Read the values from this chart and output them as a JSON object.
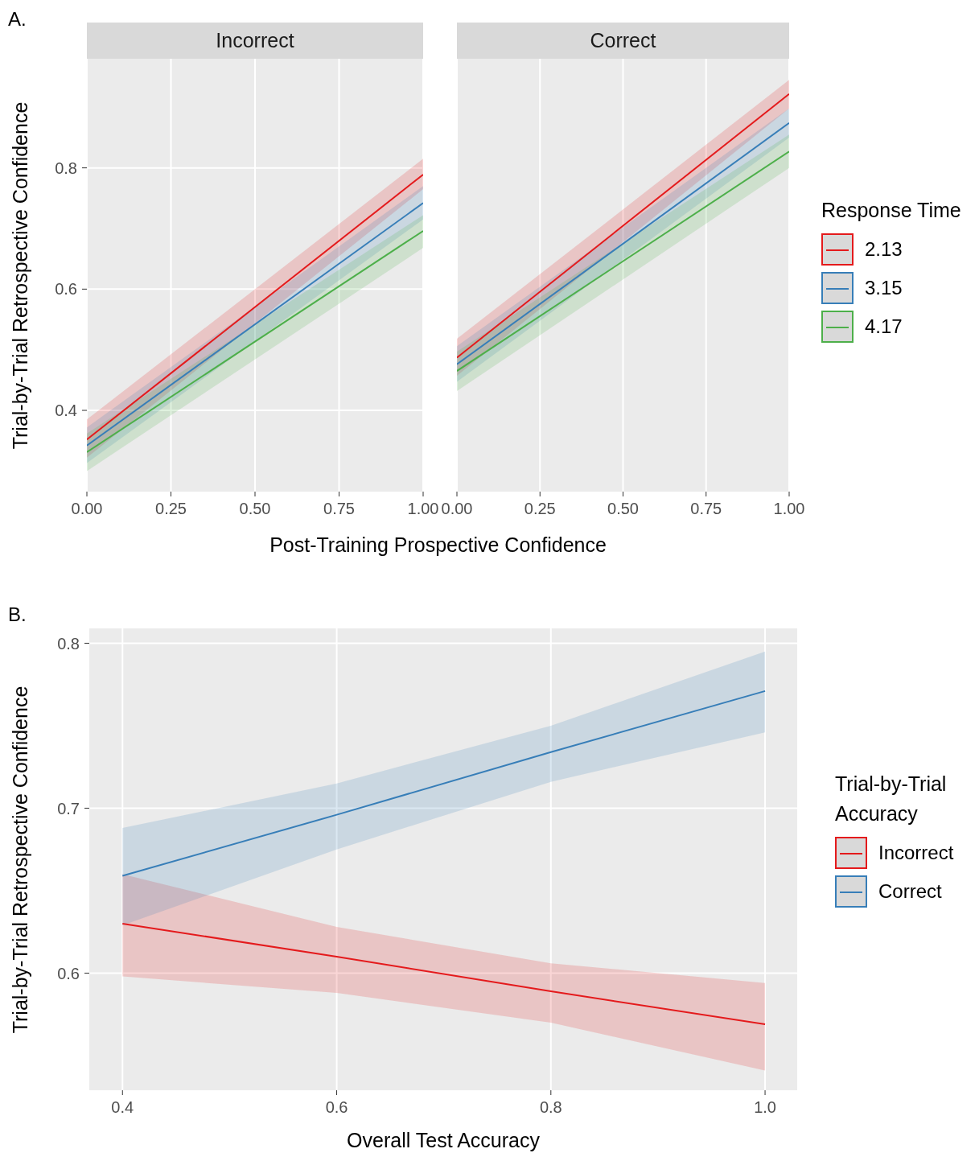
{
  "chart_data": [
    {
      "type": "line",
      "title": "Incorrect",
      "xlabel": "Post-Training Prospective Confidence",
      "ylabel": "Trial-by-Trial Retrospective Confidence",
      "annotations": [
        "A."
      ],
      "x": [
        0,
        1
      ],
      "xlim": [
        0,
        1
      ],
      "xticks": [
        {
          "value": 0,
          "label": "0.00"
        },
        {
          "value": 0.25,
          "label": "0.25"
        },
        {
          "value": 0.5,
          "label": "0.50"
        },
        {
          "value": 0.75,
          "label": "0.75"
        },
        {
          "value": 1,
          "label": "1.00"
        }
      ],
      "ylim": [
        0.266,
        0.98
      ],
      "yticks": [
        0.4,
        0.6,
        0.8
      ],
      "grid": true,
      "series": [
        {
          "color": "#e41a1c",
          "values": [
            0.352,
            0.789
          ],
          "lower": [
            0.322,
            0.765
          ],
          "upper": [
            0.385,
            0.815
          ]
        },
        {
          "color": "#377eb8",
          "values": [
            0.342,
            0.742
          ],
          "lower": [
            0.313,
            0.715
          ],
          "upper": [
            0.372,
            0.77
          ]
        },
        {
          "color": "#4daf4a",
          "values": [
            0.331,
            0.696
          ],
          "lower": [
            0.3,
            0.668
          ],
          "upper": [
            0.362,
            0.722
          ]
        }
      ]
    },
    {
      "type": "line",
      "title": "Correct",
      "x": [
        0,
        1
      ],
      "tick_labels": "x",
      "legend": "right",
      "legend_title": "Response Time",
      "xlim": [
        0,
        1
      ],
      "xticks": [
        {
          "value": 0,
          "label": "0.00"
        },
        {
          "value": 0.25,
          "label": "0.25"
        },
        {
          "value": 0.5,
          "label": "0.50"
        },
        {
          "value": 0.75,
          "label": "0.75"
        },
        {
          "value": 1,
          "label": "1.00"
        }
      ],
      "ylim": [
        0.266,
        0.98
      ],
      "yticks": [
        0.4,
        0.6,
        0.8
      ],
      "grid": true,
      "series": [
        {
          "name": "2.13",
          "color": "#e41a1c",
          "values": [
            0.487,
            0.922
          ],
          "lower": [
            0.457,
            0.898
          ],
          "upper": [
            0.518,
            0.945
          ]
        },
        {
          "name": "3.15",
          "color": "#377eb8",
          "values": [
            0.476,
            0.874
          ],
          "lower": [
            0.447,
            0.85
          ],
          "upper": [
            0.506,
            0.898
          ]
        },
        {
          "name": "4.17",
          "color": "#4daf4a",
          "values": [
            0.465,
            0.827
          ],
          "lower": [
            0.432,
            0.8
          ],
          "upper": [
            0.497,
            0.855
          ]
        }
      ]
    },
    {
      "type": "line",
      "xlabel": "Overall Test Accuracy",
      "ylabel": "Trial-by-Trial Retrospective Confidence",
      "annotations": [
        "B."
      ],
      "legend": "right",
      "legend_title": "Trial-by-Trial Accuracy",
      "x": [
        0.4,
        0.6,
        0.8,
        1.0
      ],
      "xlim": [
        0.369,
        1.03
      ],
      "xticks": [
        0.4,
        0.6,
        0.8,
        {
          "value": 1,
          "label": "1.0"
        }
      ],
      "ylim": [
        0.529,
        0.809
      ],
      "yticks": [
        0.6,
        0.7,
        0.8
      ],
      "grid": true,
      "series": [
        {
          "name": "Incorrect",
          "color": "#e41a1c",
          "values": [
            0.63,
            0.61,
            0.589,
            0.569
          ],
          "lower": [
            0.598,
            0.588,
            0.57,
            0.541
          ],
          "upper": [
            0.66,
            0.628,
            0.606,
            0.594
          ]
        },
        {
          "name": "Correct",
          "color": "#377eb8",
          "values": [
            0.659,
            0.696,
            0.734,
            0.771
          ],
          "lower": [
            0.629,
            0.675,
            0.716,
            0.746
          ],
          "upper": [
            0.688,
            0.715,
            0.75,
            0.795
          ]
        }
      ]
    }
  ]
}
